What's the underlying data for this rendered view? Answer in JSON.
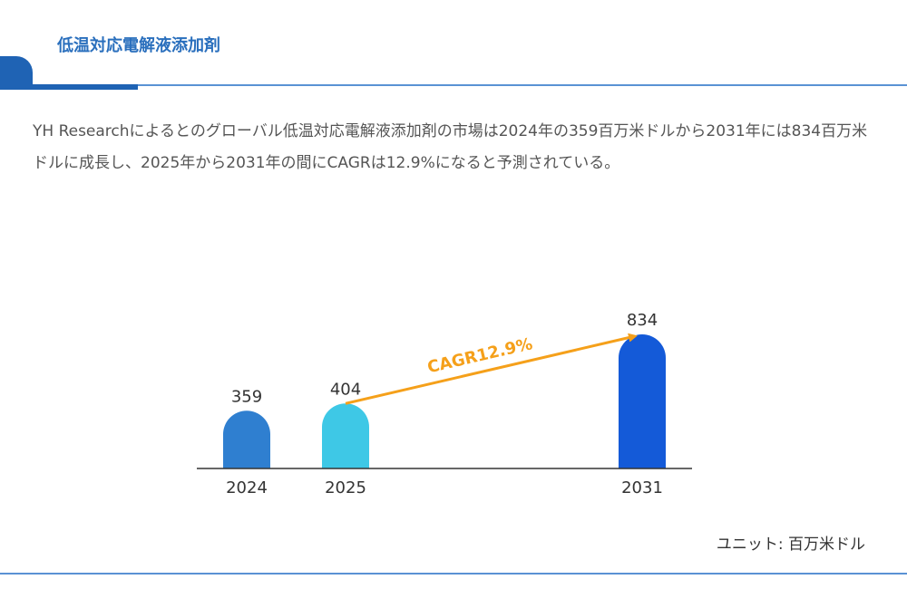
{
  "header": {
    "title": "低温対応電解液添加剤"
  },
  "description": "YH Researchによるとのグローバル低温対応電解液添加剤の市場は2024年の359百万米ドルから2031年には834百万米ドルに成長し、2025年から2031年の間にCAGRは12.9%になると予測されている。",
  "unit_label": "ユニット: 百万米ドル",
  "chart_data": {
    "type": "bar",
    "categories": [
      "2024",
      "2025",
      "2031"
    ],
    "values": [
      359,
      404,
      834
    ],
    "bar_colors": [
      "#2f7fd0",
      "#3ec8e6",
      "#145ad8"
    ],
    "annotation": {
      "text": "CAGR12.9%",
      "from": "2025",
      "to": "2031",
      "color": "#f5a01a"
    },
    "ylim": [
      0,
      834
    ]
  }
}
